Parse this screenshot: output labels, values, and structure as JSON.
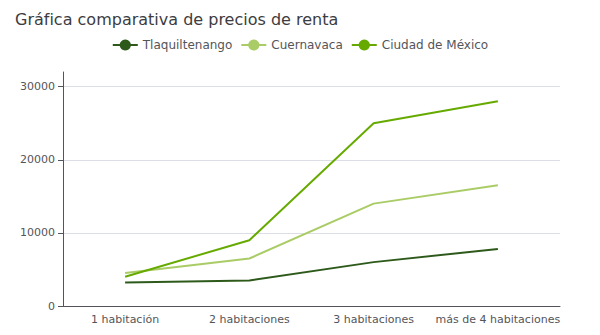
{
  "chart_data": {
    "type": "line",
    "title": "Gráfica comparativa de precios de renta",
    "categories": [
      "1 habitación",
      "2 habitaciones",
      "3 habitaciones",
      "más de 4 habitaciones"
    ],
    "series": [
      {
        "name": "Tlaquiltenango",
        "color": "#2d5a1b",
        "values": [
          3200,
          3500,
          6000,
          7800
        ]
      },
      {
        "name": "Cuernavaca",
        "color": "#aacc66",
        "values": [
          4500,
          6500,
          14000,
          16500
        ]
      },
      {
        "name": "Ciudad de México",
        "color": "#66aa00",
        "values": [
          4000,
          9000,
          25000,
          28000
        ]
      }
    ],
    "ylim": [
      0,
      32000
    ],
    "yticks": [
      0,
      10000,
      20000,
      30000
    ],
    "grid": true,
    "legend": "top"
  }
}
